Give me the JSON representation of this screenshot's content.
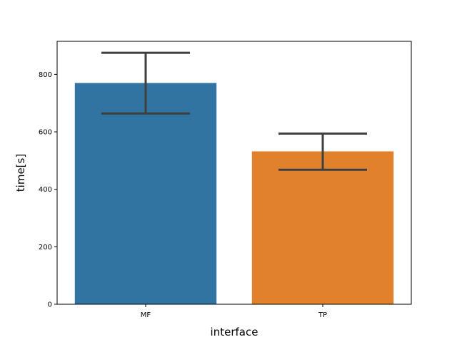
{
  "chart_data": {
    "type": "bar",
    "title": "",
    "xlabel": "interface",
    "ylabel": "time[s]",
    "categories": [
      "MF",
      "TP"
    ],
    "values": [
      770,
      532
    ],
    "error_bars": [
      {
        "low": 664,
        "high": 875
      },
      {
        "low": 468,
        "high": 594
      }
    ],
    "colors": [
      "#3274a1",
      "#e1812c"
    ],
    "error_color": "#3f3f3f",
    "ylim": [
      0,
      915
    ],
    "yticks": [
      0,
      200,
      400,
      600,
      800
    ],
    "grid": false,
    "legend": "none"
  }
}
